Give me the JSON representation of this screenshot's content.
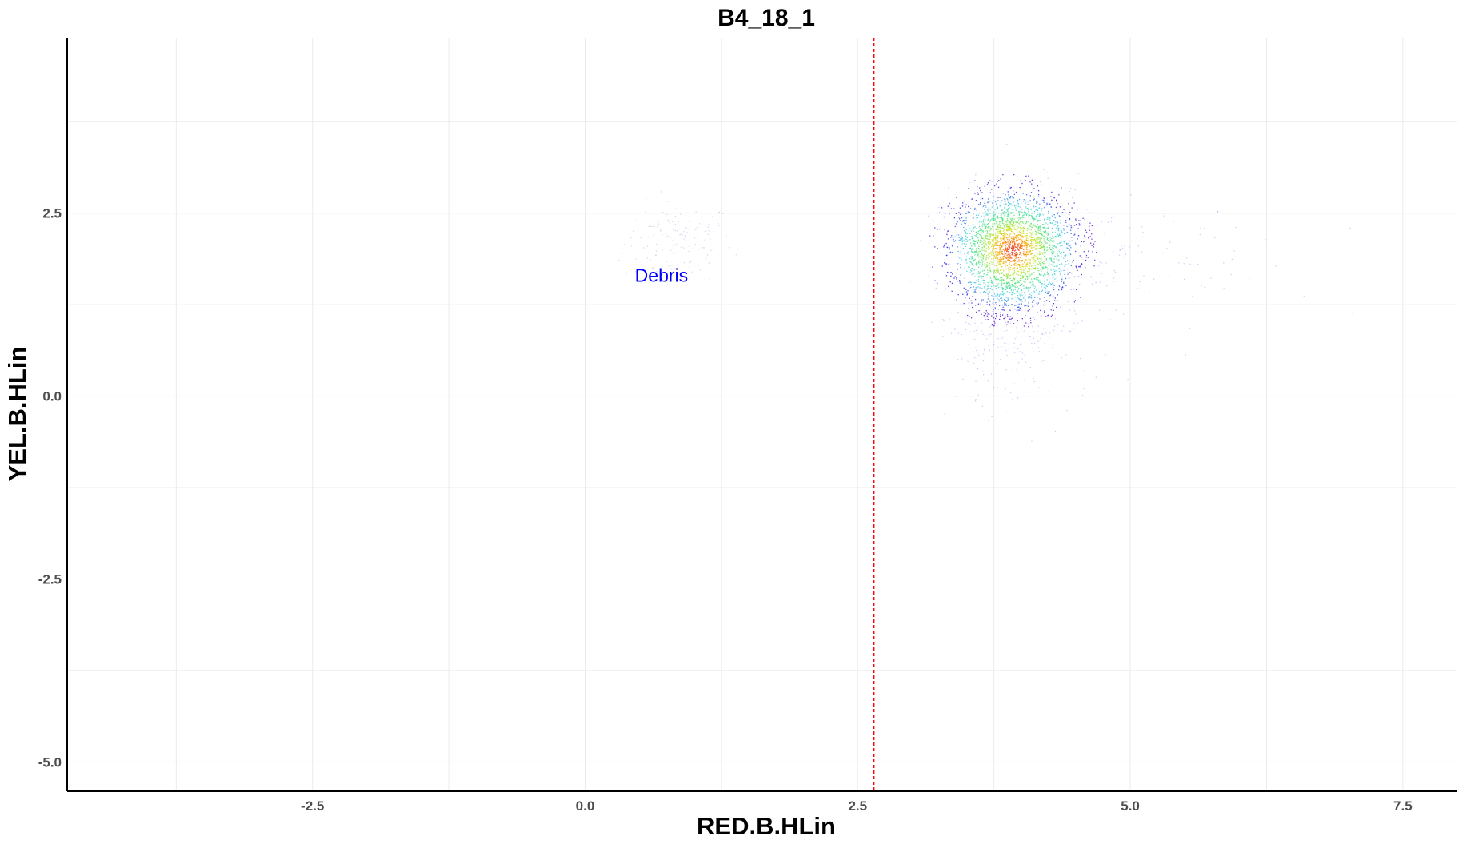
{
  "chart_data": {
    "type": "scatter",
    "title": "B4_18_1",
    "xlabel": "RED.B.HLin",
    "ylabel": "YEL.B.HLin",
    "xlim": [
      -4.75,
      8.0
    ],
    "ylim": [
      -5.4,
      4.9
    ],
    "x_ticks": [
      -2.5,
      0.0,
      2.5,
      5.0,
      7.5
    ],
    "x_tick_labels": [
      "-2.5",
      "0.0",
      "2.5",
      "5.0",
      "7.5"
    ],
    "x_minor_gridlines": [
      -3.75,
      -1.25,
      1.25,
      3.75,
      6.25
    ],
    "y_ticks": [
      -5.0,
      -2.5,
      0.0,
      2.5
    ],
    "y_tick_labels": [
      "-5.0",
      "-2.5",
      "0.0",
      "2.5"
    ],
    "y_minor_gridlines": [
      -3.75,
      -1.25,
      1.25,
      3.75
    ],
    "grid": true,
    "threshold_line": {
      "x": 2.65,
      "color": "#ff0000",
      "style": "dashed"
    },
    "annotations": [
      {
        "text": "Debris",
        "x": 0.7,
        "y": 1.65,
        "color": "#0000ff"
      }
    ],
    "colormap": "rainbow density (blue low to red high)",
    "populations": [
      {
        "label": "Debris",
        "center_x": 0.85,
        "center_y": 2.1,
        "sd_x": 0.25,
        "sd_y": 0.28,
        "density": "low"
      },
      {
        "label": "",
        "center_x": 3.92,
        "center_y": 2.0,
        "sd_x": 0.28,
        "sd_y": 0.38,
        "density": "high"
      }
    ]
  }
}
